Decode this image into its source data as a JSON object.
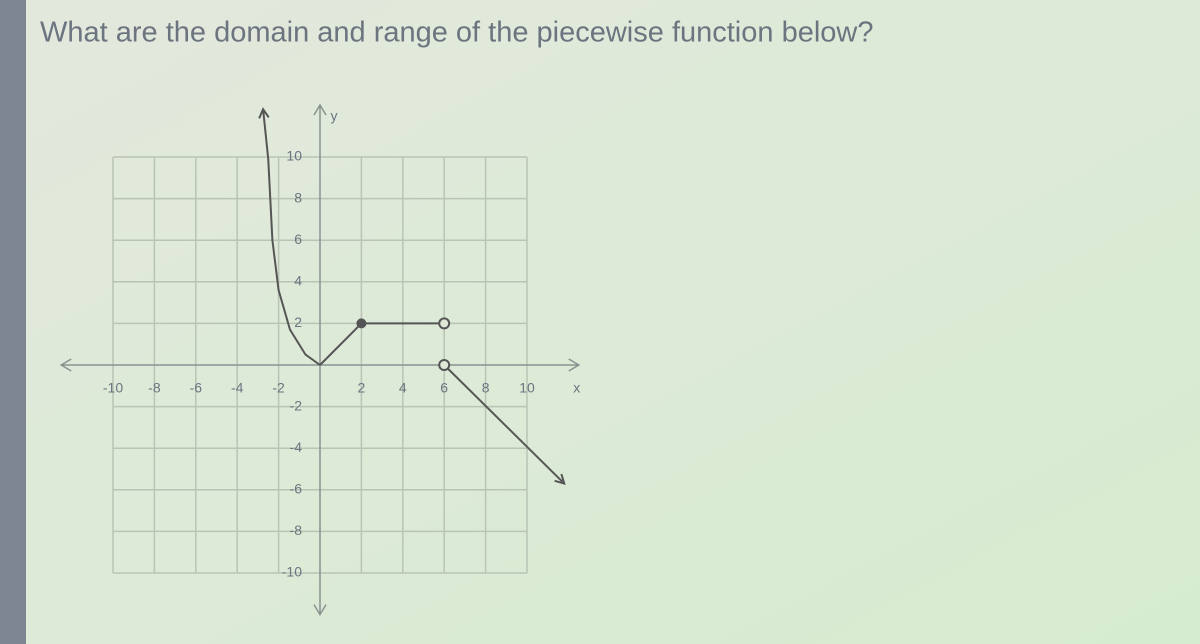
{
  "chart_data": {
    "type": "line",
    "title": "What are the domain and range of the piecewise function below?",
    "x_label": "x",
    "y_label": "y",
    "xlim": [
      -12.5,
      12.5
    ],
    "ylim": [
      -12,
      12.5
    ],
    "xticks": [
      -10,
      -8,
      -6,
      -4,
      -2,
      2,
      4,
      6,
      8,
      10
    ],
    "yticks": [
      -10,
      -8,
      -6,
      -4,
      -2,
      2,
      4,
      6,
      8,
      10
    ],
    "grid": true,
    "color": "#555555",
    "series": [
      {
        "x": [
          -2.75,
          -2.5,
          -2.3,
          -2,
          -1.45,
          -0.7,
          0
        ],
        "values": [
          12.3,
          9.9,
          6,
          3.6,
          1.7,
          0.5,
          0
        ],
        "start_marker": "arrow",
        "end_marker": "none"
      },
      {
        "x": [
          0,
          2
        ],
        "values": [
          0,
          2
        ],
        "start_marker": "none",
        "end_marker": "closed"
      },
      {
        "x": [
          2,
          6
        ],
        "values": [
          2,
          2
        ],
        "start_marker": "none",
        "end_marker": "open"
      },
      {
        "x": [
          6,
          11.8
        ],
        "values": [
          0,
          -5.7
        ],
        "start_marker": "open",
        "end_marker": "arrow"
      }
    ]
  }
}
